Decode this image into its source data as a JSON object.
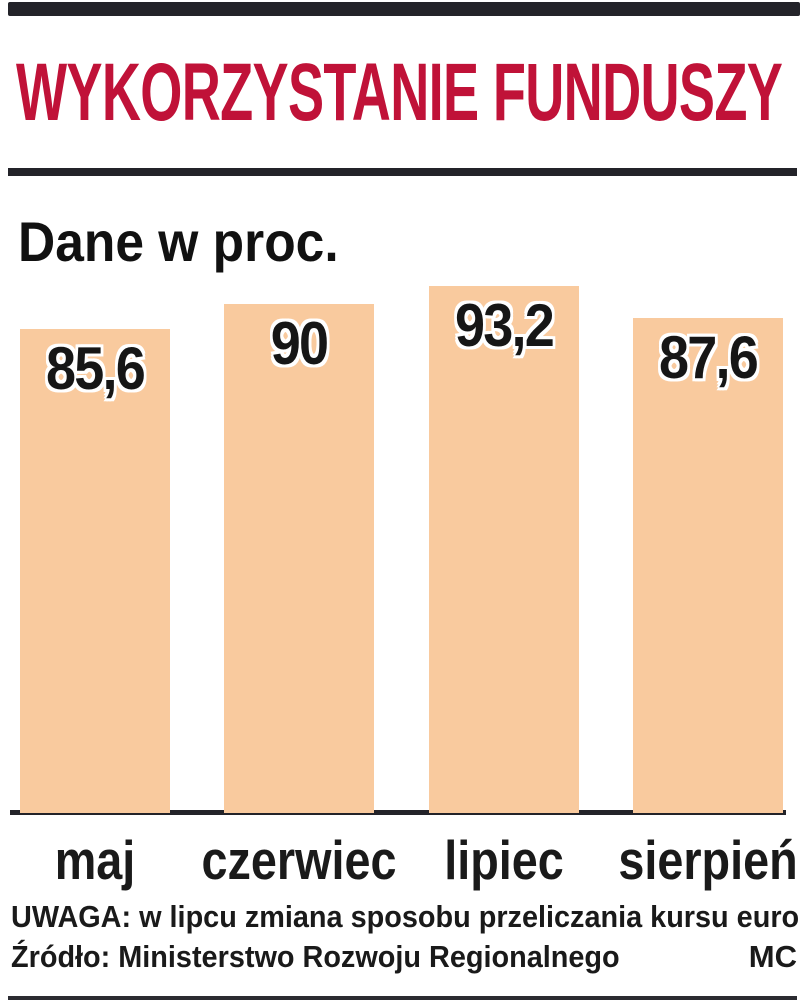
{
  "header": {
    "title": "WYKORZYSTANIE FUNDUSZY"
  },
  "chart_data": {
    "type": "bar",
    "title": "WYKORZYSTANIE FUNDUSZY",
    "subtitle": "Dane w proc.",
    "unit": "percent",
    "categories": [
      "maj",
      "czerwiec",
      "lipiec",
      "sierpień"
    ],
    "values": [
      85.6,
      90,
      93.2,
      87.6
    ],
    "value_labels": [
      "85,6",
      "90",
      "93,2",
      "87,6"
    ],
    "ylim": [
      0,
      100
    ],
    "grid": false,
    "legend": "none",
    "bar_color": "#f9ca9e"
  },
  "footer": {
    "note": "UWAGA: w lipcu zmiana sposobu przeliczania kursu euro",
    "source": "Źródło: Ministerstwo Rozwoju Regionalnego",
    "credit": "MC"
  },
  "colors": {
    "title": "#c01238",
    "bar": "#f9ca9e",
    "rule": "#232329",
    "text": "#1a1a1a"
  }
}
